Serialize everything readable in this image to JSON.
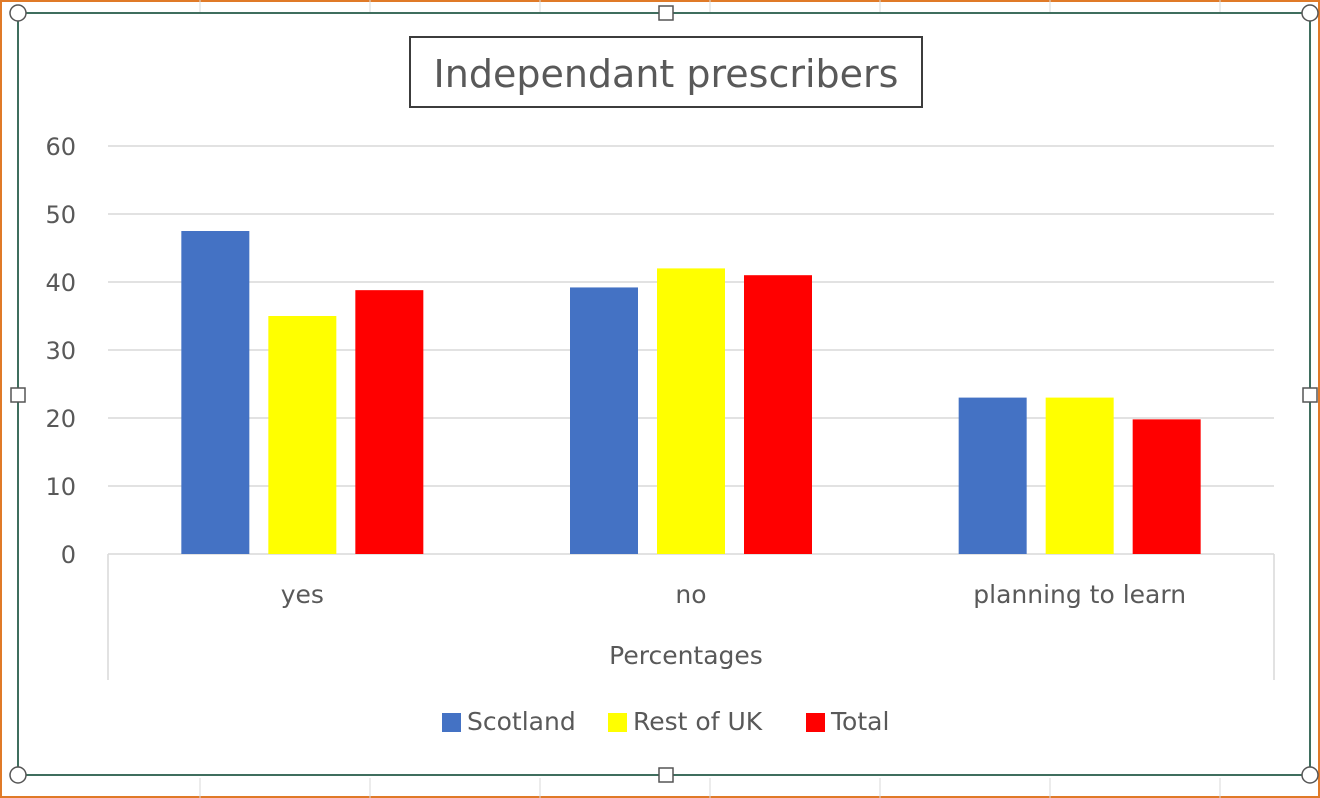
{
  "chart_data": {
    "type": "bar",
    "title": "Independant prescribers",
    "xlabel": "Percentages",
    "ylabel": "",
    "categories": [
      "yes",
      "no",
      "planning to learn"
    ],
    "series": [
      {
        "name": "Scotland",
        "color": "#4472c4",
        "values": [
          47.5,
          39.2,
          23
        ]
      },
      {
        "name": "Rest of UK",
        "color": "#ffff00",
        "values": [
          35,
          42,
          23
        ]
      },
      {
        "name": "Total",
        "color": "#ff0000",
        "values": [
          38.8,
          41,
          19.8
        ]
      }
    ],
    "ylim": [
      0,
      60
    ],
    "yticks": [
      "0",
      "10",
      "20",
      "30",
      "40",
      "50",
      "60"
    ],
    "grid": true,
    "legend": "bottom"
  }
}
